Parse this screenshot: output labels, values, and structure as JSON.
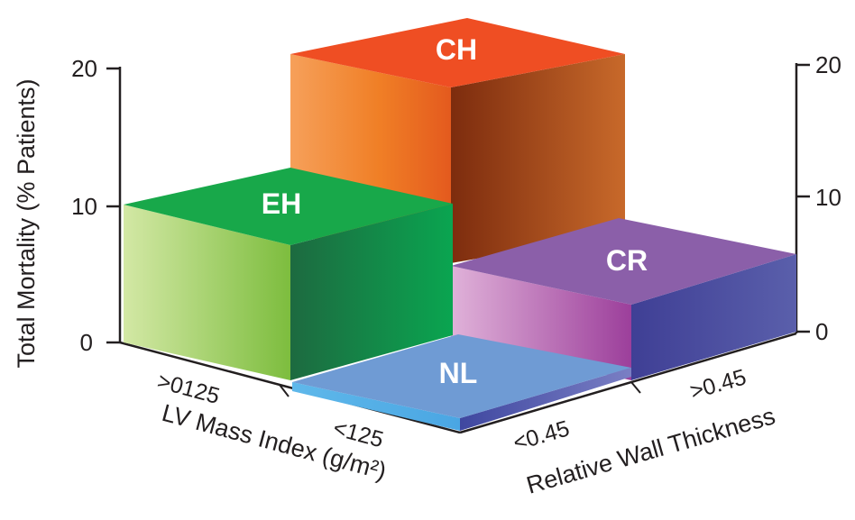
{
  "chart_data": {
    "type": "bar",
    "title": "",
    "ylabel": "Total Mortality (% Patients)",
    "xlabel": "LV Mass Index (g/m²)",
    "zlabel": "Relative Wall Thickness",
    "x_categories": [
      ">0125",
      "<125"
    ],
    "z_categories": [
      "<0.45",
      ">0.45"
    ],
    "y_ticks": [
      "0",
      "10",
      "20"
    ],
    "right_ticks": [
      "0",
      "10",
      "20"
    ],
    "ylim": [
      0,
      20
    ],
    "bars": [
      {
        "label": "CH",
        "lv_mass": ">0125",
        "rwt": ">0.45",
        "value": 20
      },
      {
        "label": "EH",
        "lv_mass": ">0125",
        "rwt": "<0.45",
        "value": 10
      },
      {
        "label": "CR",
        "lv_mass": "<125",
        "rwt": ">0.45",
        "value": 5.5
      },
      {
        "label": "NL",
        "lv_mass": "<125",
        "rwt": "<0.45",
        "value": 0.6
      }
    ],
    "colors": {
      "CH": "#ee5a24",
      "EH": "#18a84a",
      "CR": "#8b5fa9",
      "NL": "#6f9bd4"
    },
    "grid": false,
    "legend": "none"
  }
}
